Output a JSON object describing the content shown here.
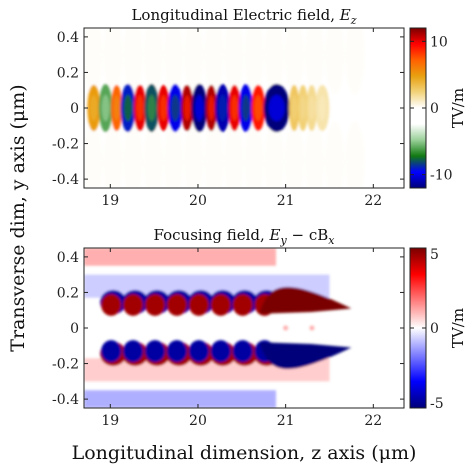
{
  "chart_data": [
    {
      "type": "heatmap",
      "title": "Longitudinal Electric field, E_z",
      "title_main": "Longitudinal Electric field, ",
      "title_var": "E",
      "title_sub": "z",
      "xlim": [
        18.7,
        22.35
      ],
      "ylim": [
        -0.45,
        0.45
      ],
      "xticks": [
        19,
        20,
        21,
        22
      ],
      "xtick_labels": [
        "19",
        "20",
        "21",
        "22"
      ],
      "yticks": [
        0.4,
        0.2,
        0,
        -0.2,
        -0.4
      ],
      "ytick_labels": [
        "0.4",
        "0.2",
        "0",
        "-0.2",
        "-0.4"
      ],
      "colorbar": {
        "label": "TV/m",
        "range": [
          -12,
          12
        ],
        "ticks": [
          10,
          0,
          -10
        ],
        "tick_labels": [
          "10",
          "0",
          "-10"
        ],
        "colors": [
          "#00007a",
          "#0000ff",
          "#117a11",
          "#9ad09a",
          "#ffffff",
          "#ffffff",
          "#f2d37a",
          "#e8a010",
          "#ff6000",
          "#ff0000",
          "#7a0000"
        ]
      },
      "field": {
        "bands": [
          {
            "z": 18.75,
            "value": 5
          },
          {
            "z": 18.88,
            "value": -6
          },
          {
            "z": 19.02,
            "value": 7
          },
          {
            "z": 19.13,
            "value": -9
          },
          {
            "z": 19.28,
            "value": 10
          },
          {
            "z": 19.4,
            "value": -8
          },
          {
            "z": 19.55,
            "value": 10
          },
          {
            "z": 19.67,
            "value": -10
          },
          {
            "z": 19.82,
            "value": 11
          },
          {
            "z": 19.94,
            "value": -12
          },
          {
            "z": 20.1,
            "value": 11
          },
          {
            "z": 20.21,
            "value": -11
          },
          {
            "z": 20.36,
            "value": 10
          },
          {
            "z": 20.48,
            "value": -10
          },
          {
            "z": 20.62,
            "value": 9
          },
          {
            "z": 20.76,
            "value": -12
          },
          {
            "z": 21.05,
            "value": 3
          },
          {
            "z": 21.15,
            "value": 2.5
          },
          {
            "z": 21.25,
            "value": 2
          },
          {
            "z": 21.35,
            "value": 1.5
          }
        ],
        "half_width": 0.13
      }
    },
    {
      "type": "heatmap",
      "title": "Focusing field, E_y - cB_x",
      "title_main": "Focusing field, ",
      "title_var": "E",
      "title_sub": "y",
      "title_rest": " − cB",
      "title_sub2": "x",
      "xlim": [
        18.7,
        22.35
      ],
      "ylim": [
        -0.45,
        0.45
      ],
      "xticks": [
        19,
        20,
        21,
        22
      ],
      "xtick_labels": [
        "19",
        "20",
        "21",
        "22"
      ],
      "yticks": [
        0.4,
        0.2,
        0,
        -0.2,
        -0.4
      ],
      "ytick_labels": [
        "0.4",
        "0.2",
        "0",
        "-0.2",
        "-0.4"
      ],
      "colorbar": {
        "label": "TV/m",
        "range": [
          -5,
          5
        ],
        "ticks": [
          5,
          0,
          -5
        ],
        "tick_labels": [
          "5",
          "0",
          "-5"
        ],
        "colors": [
          "#00007a",
          "#0000ff",
          "#8080ff",
          "#ffffff",
          "#ff8080",
          "#ff0000",
          "#7a0000"
        ]
      },
      "field": {
        "lobes_z": [
          18.85,
          19.1,
          19.35,
          19.6,
          19.85,
          20.1,
          20.35,
          20.6
        ],
        "lobe_value": 4.5,
        "big_lobe": {
          "z_start": 20.7,
          "z_end": 21.75,
          "value": 5
        },
        "outer_value": -1.5
      }
    }
  ],
  "ylabel": "Transverse dim, y axis (μm)",
  "xlabel": "Longitudinal dimension, z axis (μm)"
}
